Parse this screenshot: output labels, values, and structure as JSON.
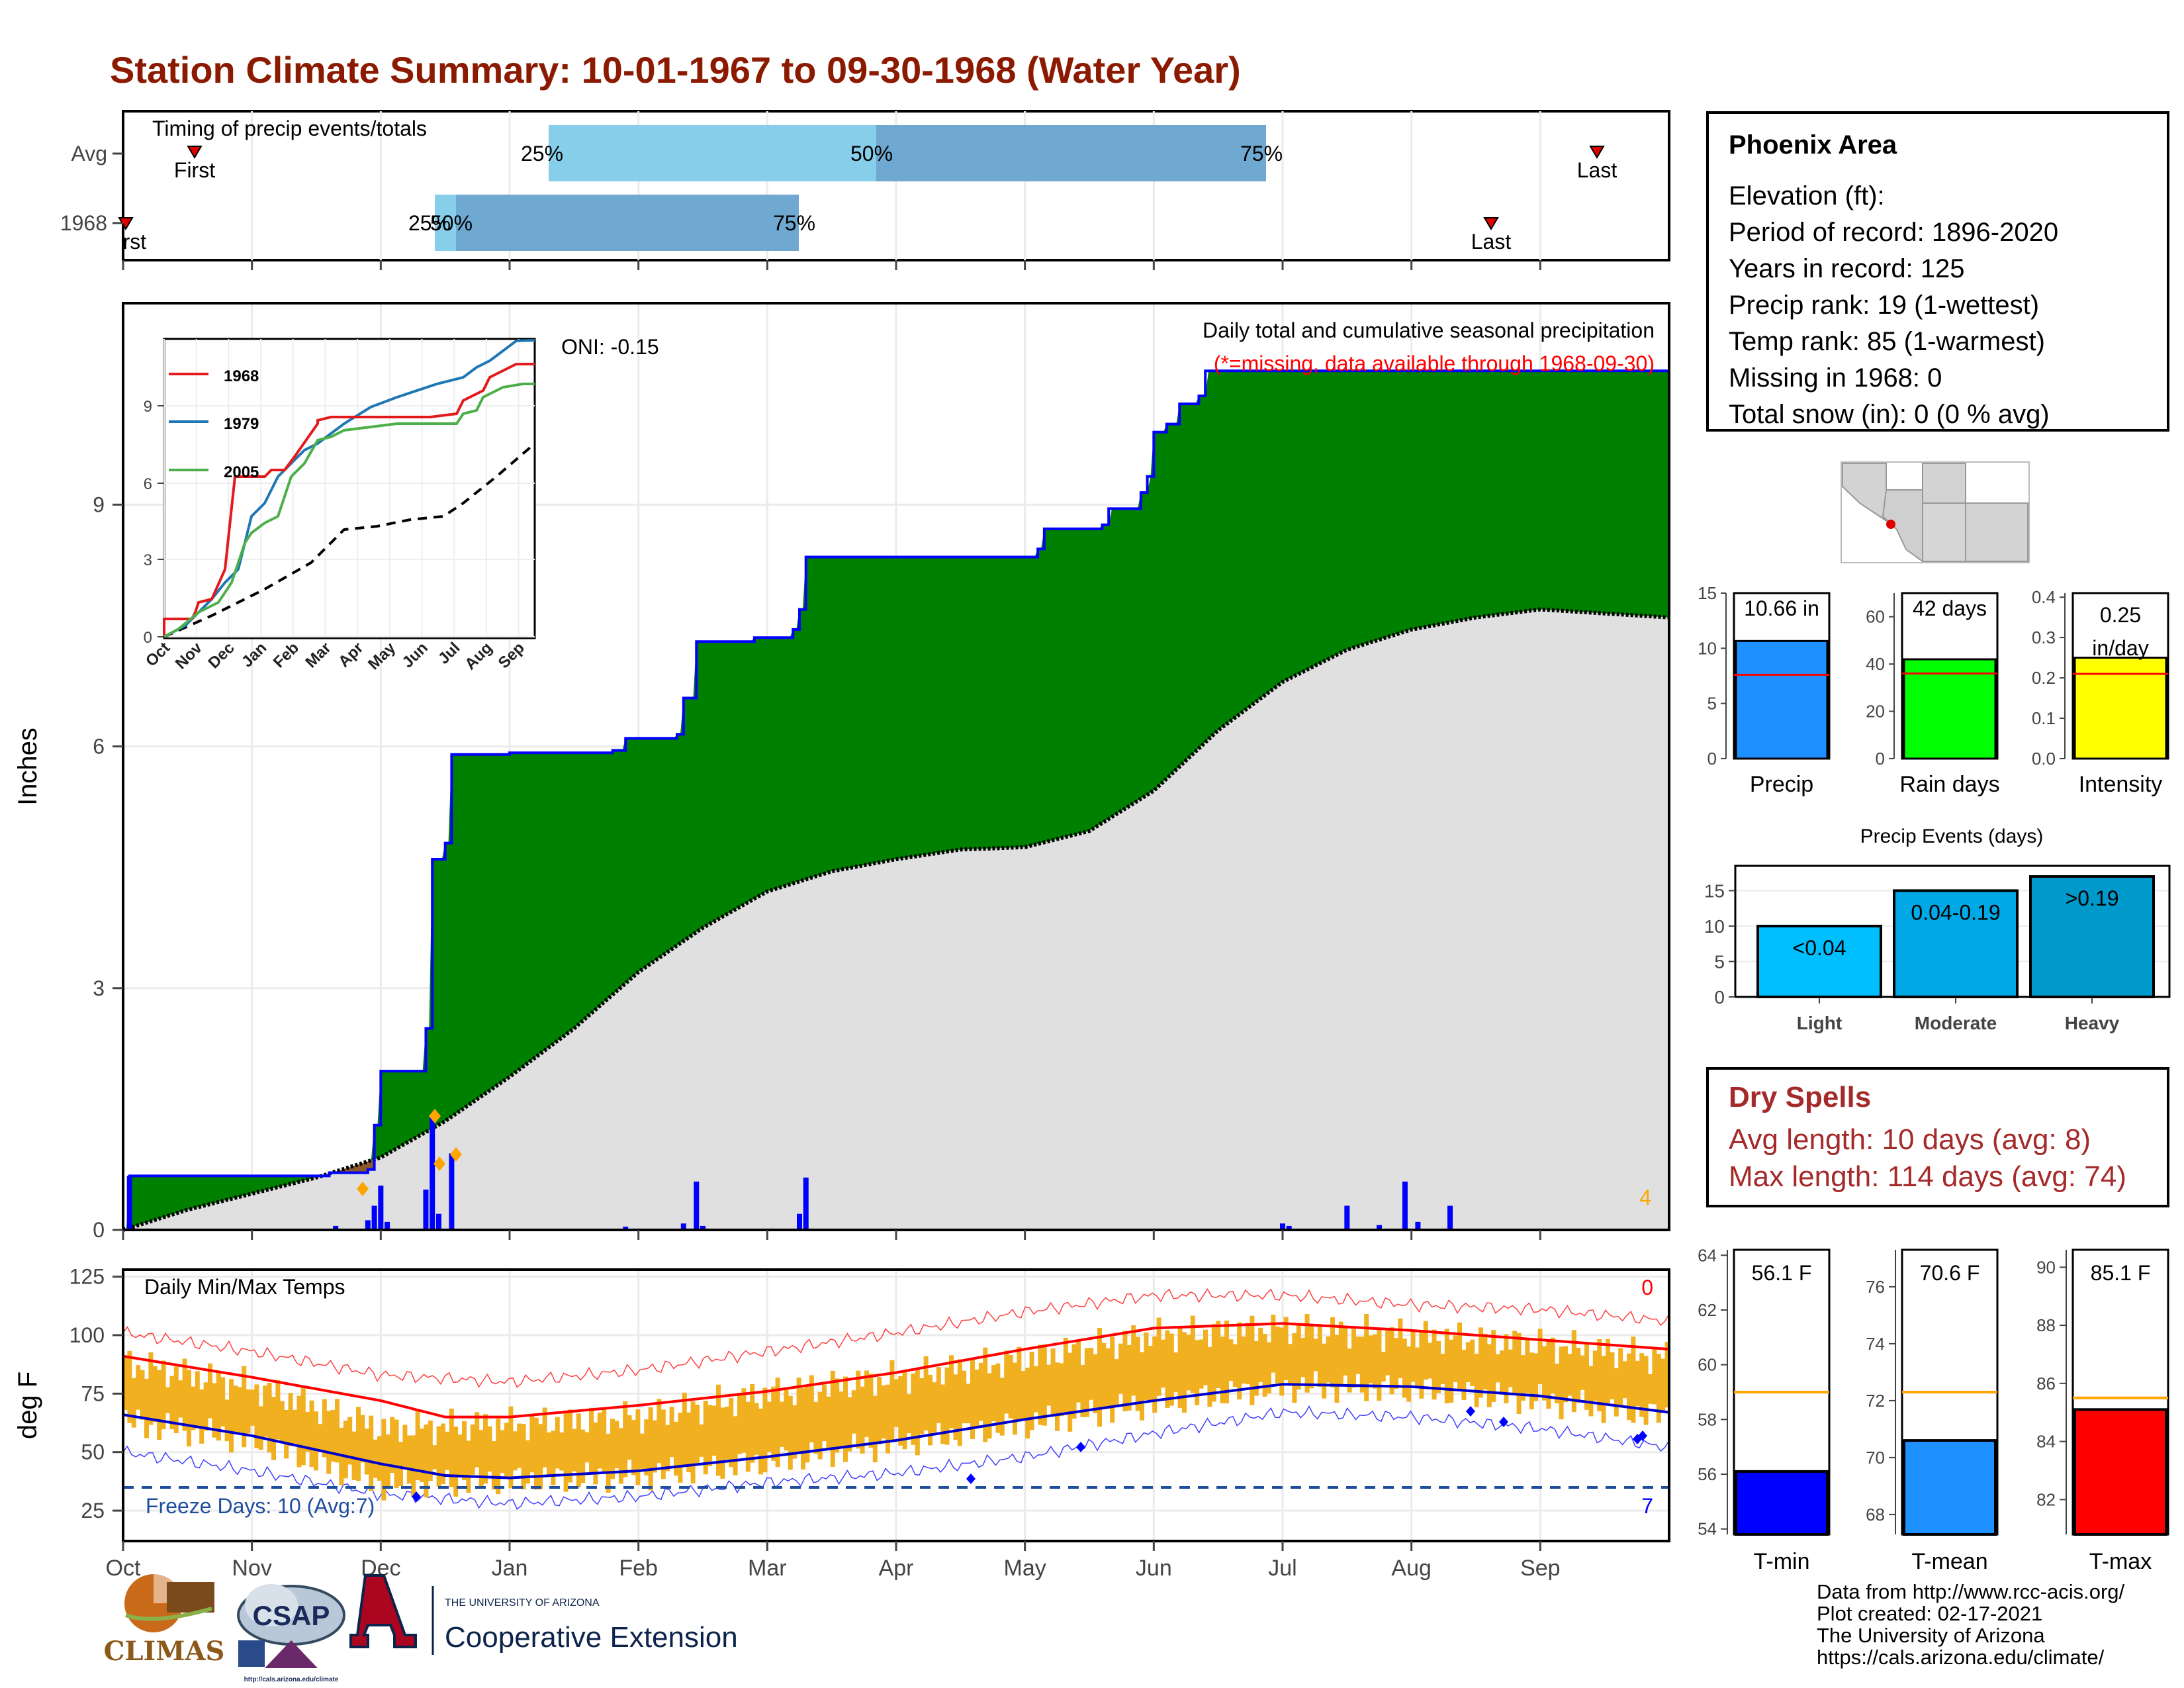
{
  "title": "Station Climate Summary: 10-01-1967 to 09-30-1968 (Water Year)",
  "colors": {
    "title": "#8b1a00",
    "precip_fill": "#008000",
    "avg_fill": "#e0e0e0",
    "bar_blue": "#0000ff",
    "tmax_line": "#ff0000",
    "tmin_line": "#0000cd",
    "temp_bars": "#f0b020",
    "freeze": "#1f4e9e"
  },
  "timing": {
    "title": "Timing of precip events/totals",
    "rows": [
      "Avg",
      "1968"
    ],
    "avg_bars": [
      {
        "from": 25,
        "to": 50,
        "label": "25%"
      },
      {
        "from": 50,
        "to": 75,
        "label": "50%"
      }
    ],
    "avg_end_label": "75%",
    "avg_first": "First",
    "avg_last": "Last",
    "y1968_bars": [
      {
        "label": "25%"
      },
      {
        "label": "50%"
      }
    ],
    "y1968_end_label": "75%",
    "y1968_first": "First",
    "y1968_last": "Last"
  },
  "precip_chart": {
    "ylabel": "Inches",
    "yticks": [
      "0",
      "3",
      "6",
      "9"
    ],
    "title": "Daily total and cumulative seasonal precipitation",
    "subtitle": "(*=missing, data available through 1968-09-30)",
    "oni": "ONI: -0.15",
    "extreme_count": "4"
  },
  "inset": {
    "yticks": [
      "0",
      "3",
      "6",
      "9"
    ],
    "xticks": [
      "Oct",
      "Nov",
      "Dec",
      "Jan",
      "Feb",
      "Mar",
      "Apr",
      "May",
      "Jun",
      "Jul",
      "Aug",
      "Sep"
    ],
    "legend": [
      "1968",
      "1979",
      "2005"
    ]
  },
  "temp_chart": {
    "ylabel": "deg F",
    "yticks": [
      "25",
      "50",
      "75",
      "100",
      "125"
    ],
    "title": "Daily Min/Max Temps",
    "freeze_label": "Freeze Days: 10 (Avg:7)",
    "count_top": "0",
    "count_bottom": "7"
  },
  "months": [
    "Oct",
    "Nov",
    "Dec",
    "Jan",
    "Feb",
    "Mar",
    "Apr",
    "May",
    "Jun",
    "Jul",
    "Aug",
    "Sep"
  ],
  "station": {
    "name": "Phoenix Area",
    "lines": [
      "Elevation (ft):",
      "Period of record: 1896-2020",
      "Years in record: 125",
      "Precip rank: 19 (1-wettest)",
      "Temp rank: 85 (1-warmest)",
      "Missing in 1968: 0",
      "Total snow (in): 0 (0 % avg)"
    ]
  },
  "mini_bars": [
    {
      "label": "Precip",
      "value_text": "10.66 in",
      "value": 10.66,
      "avg": 7.6,
      "ymax": 15,
      "yticks": [
        "0",
        "5",
        "10",
        "15"
      ],
      "color": "#1e90ff"
    },
    {
      "label": "Rain days",
      "value_text": "42 days",
      "value": 42,
      "avg": 36,
      "ymax": 70,
      "yticks": [
        "0",
        "20",
        "40",
        "60"
      ],
      "color": "#00ff00"
    },
    {
      "label": "Intensity",
      "value_text": "0.25 in/day",
      "value": 0.25,
      "avg": 0.21,
      "ymax": 0.41,
      "yticks": [
        "0.0",
        "0.1",
        "0.2",
        "0.3",
        "0.4"
      ],
      "color": "#ffff00"
    }
  ],
  "events": {
    "title": "Precip Events (days)",
    "yticks": [
      "0",
      "5",
      "10",
      "15"
    ],
    "bars": [
      {
        "cat": "Light",
        "range": "<0.04",
        "value": 10,
        "color": "#00bfff"
      },
      {
        "cat": "Moderate",
        "range": "0.04-0.19",
        "value": 15,
        "color": "#00a8e6"
      },
      {
        "cat": "Heavy",
        "range": ">0.19",
        "value": 17,
        "color": "#0099cc"
      }
    ]
  },
  "dry_spells": {
    "title": "Dry Spells",
    "avg": "Avg length: 10 days (avg: 8)",
    "max": "Max length: 114 days (avg: 74)"
  },
  "temp_bars": [
    {
      "label": "T-min",
      "value_text": "56.1 F",
      "value": 56.1,
      "avg": 59.0,
      "ymin": 53.8,
      "ymax": 64.2,
      "yticks": [
        "54",
        "56",
        "58",
        "60",
        "62",
        "64"
      ],
      "color": "#0000ff"
    },
    {
      "label": "T-mean",
      "value_text": "70.6 F",
      "value": 70.6,
      "avg": 72.3,
      "ymin": 67.3,
      "ymax": 77.3,
      "yticks": [
        "68",
        "70",
        "72",
        "74",
        "76"
      ],
      "color": "#1e90ff"
    },
    {
      "label": "T-max",
      "value_text": "85.1 F",
      "value": 85.1,
      "avg": 85.5,
      "ymin": 80.8,
      "ymax": 90.6,
      "yticks": [
        "82",
        "84",
        "86",
        "88",
        "90"
      ],
      "color": "#ff0000"
    }
  ],
  "credits": [
    "Data from http://www.rcc-acis.org/",
    "Plot created: 02-17-2021",
    "The University of Arizona",
    "https://cals.arizona.edu/climate/"
  ],
  "logos": {
    "climas": "CLIMAS",
    "csap": "CSAP",
    "csap_url": "http://cals.arizona.edu/climate",
    "ua_small": "THE UNIVERSITY OF ARIZONA",
    "ua_big": "Cooperative Extension"
  },
  "chart_data": [
    {
      "type": "area",
      "title": "Daily total and cumulative seasonal precipitation",
      "ylabel": "Inches",
      "ylim": [
        0,
        11.5
      ],
      "x_unit": "month",
      "cumulative_1968": [
        [
          0,
          0.0
        ],
        [
          0.05,
          0.67
        ],
        [
          1.3,
          0.67
        ],
        [
          1.6,
          0.71
        ],
        [
          1.9,
          0.75
        ],
        [
          1.95,
          1.3
        ],
        [
          2.0,
          1.97
        ],
        [
          2.3,
          1.97
        ],
        [
          2.35,
          2.5
        ],
        [
          2.4,
          4.6
        ],
        [
          2.5,
          4.8
        ],
        [
          2.55,
          5.9
        ],
        [
          3.0,
          5.92
        ],
        [
          3.8,
          5.95
        ],
        [
          3.9,
          6.1
        ],
        [
          4.3,
          6.15
        ],
        [
          4.35,
          6.6
        ],
        [
          4.45,
          7.3
        ],
        [
          4.9,
          7.35
        ],
        [
          5.2,
          7.45
        ],
        [
          5.25,
          7.7
        ],
        [
          5.3,
          8.35
        ],
        [
          6.0,
          8.35
        ],
        [
          7.0,
          8.35
        ],
        [
          7.1,
          8.45
        ],
        [
          7.15,
          8.7
        ],
        [
          7.6,
          8.75
        ],
        [
          7.65,
          8.95
        ],
        [
          7.9,
          9.15
        ],
        [
          7.95,
          9.35
        ],
        [
          8.0,
          9.9
        ],
        [
          8.1,
          10.0
        ],
        [
          8.2,
          10.25
        ],
        [
          8.35,
          10.35
        ],
        [
          8.4,
          10.66
        ],
        [
          12.0,
          10.66
        ]
      ],
      "cumulative_avg": [
        [
          0,
          0.0
        ],
        [
          0.5,
          0.25
        ],
        [
          1.0,
          0.45
        ],
        [
          1.5,
          0.65
        ],
        [
          2.0,
          0.9
        ],
        [
          2.5,
          1.35
        ],
        [
          3.0,
          1.9
        ],
        [
          3.5,
          2.5
        ],
        [
          4.0,
          3.2
        ],
        [
          4.5,
          3.75
        ],
        [
          5.0,
          4.2
        ],
        [
          5.5,
          4.45
        ],
        [
          6.0,
          4.6
        ],
        [
          6.5,
          4.72
        ],
        [
          7.0,
          4.75
        ],
        [
          7.5,
          4.95
        ],
        [
          8.0,
          5.45
        ],
        [
          8.5,
          6.2
        ],
        [
          9.0,
          6.8
        ],
        [
          9.5,
          7.2
        ],
        [
          10.0,
          7.45
        ],
        [
          10.5,
          7.6
        ],
        [
          11.0,
          7.7
        ],
        [
          12.0,
          7.6
        ]
      ],
      "daily_events": [
        [
          0.05,
          0.67
        ],
        [
          1.65,
          0.05
        ],
        [
          1.9,
          0.12
        ],
        [
          1.95,
          0.3
        ],
        [
          2.0,
          0.55
        ],
        [
          2.05,
          0.1
        ],
        [
          2.35,
          0.5
        ],
        [
          2.4,
          1.4
        ],
        [
          2.45,
          0.2
        ],
        [
          2.55,
          0.95
        ],
        [
          3.9,
          0.04
        ],
        [
          4.35,
          0.08
        ],
        [
          4.45,
          0.6
        ],
        [
          4.5,
          0.05
        ],
        [
          5.25,
          0.2
        ],
        [
          5.3,
          0.65
        ],
        [
          9.0,
          0.08
        ],
        [
          9.05,
          0.05
        ],
        [
          9.5,
          0.3
        ],
        [
          9.75,
          0.06
        ],
        [
          9.95,
          0.6
        ],
        [
          10.05,
          0.1
        ],
        [
          10.3,
          0.3
        ]
      ]
    },
    {
      "type": "line",
      "title": "Daily Min/Max Temps",
      "ylabel": "deg F",
      "ylim": [
        12,
        128
      ],
      "x_unit": "month",
      "normal_max": [
        [
          0,
          91
        ],
        [
          1,
          82
        ],
        [
          2,
          72
        ],
        [
          2.5,
          65
        ],
        [
          3,
          65
        ],
        [
          4,
          70
        ],
        [
          5,
          76
        ],
        [
          6,
          84
        ],
        [
          7,
          94
        ],
        [
          8,
          103
        ],
        [
          9,
          105
        ],
        [
          10,
          102
        ],
        [
          11,
          98
        ],
        [
          12,
          94
        ]
      ],
      "normal_min": [
        [
          0,
          66
        ],
        [
          1,
          57
        ],
        [
          2,
          45
        ],
        [
          2.5,
          40
        ],
        [
          3,
          39
        ],
        [
          4,
          42
        ],
        [
          5,
          48
        ],
        [
          6,
          55
        ],
        [
          7,
          64
        ],
        [
          8,
          72
        ],
        [
          9,
          79
        ],
        [
          10,
          78
        ],
        [
          11,
          74
        ],
        [
          12,
          67
        ]
      ],
      "record_high": [
        [
          0,
          101
        ],
        [
          1,
          93
        ],
        [
          2,
          83
        ],
        [
          3,
          80
        ],
        [
          4,
          85
        ],
        [
          5,
          93
        ],
        [
          6,
          101
        ],
        [
          7,
          110
        ],
        [
          8,
          117
        ],
        [
          9,
          117
        ],
        [
          10,
          113
        ],
        [
          11,
          111
        ],
        [
          12,
          106
        ]
      ],
      "record_low": [
        [
          0,
          50
        ],
        [
          1,
          42
        ],
        [
          2,
          32
        ],
        [
          3,
          28
        ],
        [
          4,
          31
        ],
        [
          5,
          37
        ],
        [
          6,
          41
        ],
        [
          7,
          48
        ],
        [
          8,
          58
        ],
        [
          9,
          67
        ],
        [
          10,
          65
        ],
        [
          11,
          60
        ],
        [
          12,
          52
        ]
      ],
      "observed_max": [
        [
          0,
          88
        ],
        [
          1,
          78
        ],
        [
          2,
          60
        ],
        [
          3,
          62
        ],
        [
          4,
          65
        ],
        [
          5,
          75
        ],
        [
          6,
          82
        ],
        [
          7,
          90
        ],
        [
          8,
          100
        ],
        [
          9,
          103
        ],
        [
          10,
          100
        ],
        [
          11,
          96
        ],
        [
          12,
          90
        ]
      ],
      "observed_min": [
        [
          0,
          63
        ],
        [
          1,
          55
        ],
        [
          2,
          36
        ],
        [
          3,
          38
        ],
        [
          4,
          40
        ],
        [
          5,
          46
        ],
        [
          6,
          54
        ],
        [
          7,
          62
        ],
        [
          8,
          71
        ],
        [
          9,
          78
        ],
        [
          10,
          77
        ],
        [
          11,
          72
        ],
        [
          12,
          65
        ]
      ],
      "freeze_threshold": 32
    }
  ]
}
